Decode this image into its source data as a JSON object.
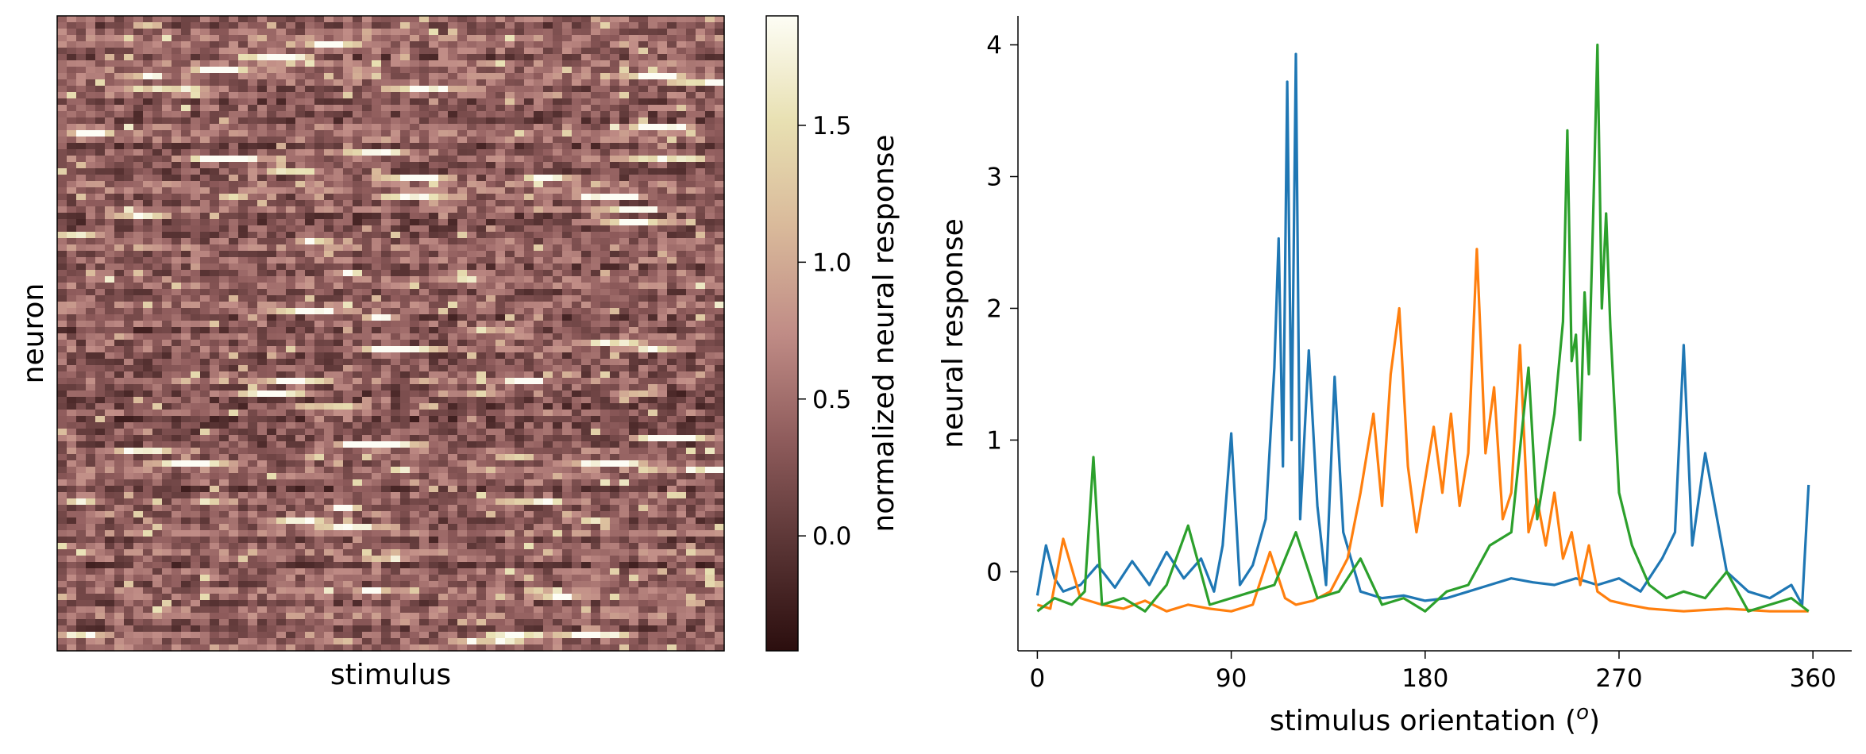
{
  "chart_data": [
    {
      "type": "heatmap",
      "xlabel": "stimulus",
      "ylabel": "neuron",
      "colormap": "pink",
      "colorbar": {
        "label": "normalized neural response",
        "ticks": [
          0.0,
          0.5,
          1.0,
          1.5
        ],
        "tick_labels": [
          "0.0",
          "0.5",
          "1.0",
          "1.5"
        ],
        "range": [
          -0.42,
          1.9
        ],
        "colors": [
          "#2b0e0e",
          "#5a3535",
          "#8f5c5c",
          "#c08c86",
          "#d9b99a",
          "#e8e0b2",
          "#fdfdf5"
        ]
      }
    },
    {
      "type": "line",
      "xlabel": "stimulus orientation (",
      "xlabel_superscript": "o",
      "xlabel_close": ")",
      "ylabel": "neural response",
      "xticks": [
        0,
        90,
        180,
        270,
        360
      ],
      "xtick_labels": [
        "0",
        "90",
        "180",
        "270",
        "360"
      ],
      "yticks": [
        0,
        1,
        2,
        3,
        4
      ],
      "ytick_labels": [
        "0",
        "1",
        "2",
        "3",
        "4"
      ],
      "xlim": [
        -9,
        378
      ],
      "ylim": [
        -0.6,
        4.22
      ],
      "grid": false,
      "legend": "none",
      "series": [
        {
          "color": "#1f77b4",
          "x": [
            0,
            4,
            8,
            12,
            20,
            28,
            36,
            44,
            52,
            60,
            68,
            76,
            82,
            86,
            90,
            94,
            100,
            106,
            110,
            112,
            114,
            116,
            118,
            120,
            122,
            126,
            130,
            134,
            138,
            142,
            150,
            160,
            170,
            180,
            190,
            200,
            210,
            220,
            230,
            240,
            250,
            260,
            270,
            280,
            290,
            296,
            300,
            304,
            310,
            320,
            330,
            340,
            350,
            355,
            358
          ],
          "y": [
            -0.18,
            0.2,
            -0.05,
            -0.15,
            -0.1,
            0.05,
            -0.12,
            0.08,
            -0.1,
            0.15,
            -0.05,
            0.1,
            -0.15,
            0.2,
            1.05,
            -0.1,
            0.05,
            0.4,
            1.55,
            2.53,
            0.8,
            3.72,
            1.0,
            3.93,
            0.4,
            1.68,
            0.5,
            -0.1,
            1.48,
            0.3,
            -0.15,
            -0.2,
            -0.18,
            -0.22,
            -0.2,
            -0.15,
            -0.1,
            -0.05,
            -0.08,
            -0.1,
            -0.05,
            -0.1,
            -0.05,
            -0.15,
            0.1,
            0.3,
            1.72,
            0.2,
            0.9,
            0.0,
            -0.15,
            -0.2,
            -0.1,
            -0.25,
            0.66
          ]
        },
        {
          "color": "#ff7f0e",
          "x": [
            0,
            6,
            12,
            20,
            30,
            40,
            50,
            60,
            70,
            80,
            90,
            100,
            108,
            115,
            120,
            128,
            136,
            144,
            150,
            156,
            160,
            164,
            168,
            172,
            176,
            180,
            184,
            188,
            192,
            196,
            200,
            204,
            208,
            212,
            216,
            220,
            224,
            228,
            232,
            236,
            240,
            244,
            248,
            252,
            256,
            260,
            266,
            274,
            284,
            300,
            320,
            340,
            358
          ],
          "y": [
            -0.25,
            -0.28,
            0.25,
            -0.2,
            -0.25,
            -0.28,
            -0.22,
            -0.3,
            -0.25,
            -0.28,
            -0.3,
            -0.25,
            0.15,
            -0.2,
            -0.25,
            -0.22,
            -0.15,
            0.1,
            0.6,
            1.2,
            0.5,
            1.5,
            2.0,
            0.8,
            0.3,
            0.7,
            1.1,
            0.6,
            1.2,
            0.5,
            0.9,
            2.45,
            0.9,
            1.4,
            0.4,
            0.6,
            1.72,
            0.3,
            0.55,
            0.2,
            0.6,
            0.1,
            0.3,
            -0.1,
            0.2,
            -0.15,
            -0.22,
            -0.25,
            -0.28,
            -0.3,
            -0.28,
            -0.3,
            -0.3
          ]
        },
        {
          "color": "#2ca02c",
          "x": [
            0,
            8,
            16,
            22,
            26,
            30,
            40,
            50,
            60,
            70,
            80,
            90,
            100,
            110,
            120,
            130,
            140,
            150,
            160,
            170,
            180,
            190,
            200,
            210,
            220,
            228,
            232,
            236,
            240,
            244,
            246,
            248,
            250,
            252,
            254,
            256,
            258,
            260,
            262,
            264,
            266,
            270,
            276,
            284,
            292,
            300,
            310,
            320,
            330,
            340,
            350,
            358
          ],
          "y": [
            -0.3,
            -0.2,
            -0.25,
            -0.15,
            0.87,
            -0.25,
            -0.2,
            -0.3,
            -0.1,
            0.35,
            -0.25,
            -0.2,
            -0.15,
            -0.1,
            0.3,
            -0.2,
            -0.15,
            0.1,
            -0.25,
            -0.2,
            -0.3,
            -0.15,
            -0.1,
            0.2,
            0.3,
            1.55,
            0.4,
            0.8,
            1.2,
            1.9,
            3.35,
            1.6,
            1.8,
            1.0,
            2.12,
            1.5,
            2.7,
            4.0,
            2.0,
            2.72,
            1.85,
            0.6,
            0.2,
            -0.1,
            -0.2,
            -0.15,
            -0.2,
            0.0,
            -0.3,
            -0.25,
            -0.2,
            -0.3
          ]
        }
      ]
    }
  ]
}
